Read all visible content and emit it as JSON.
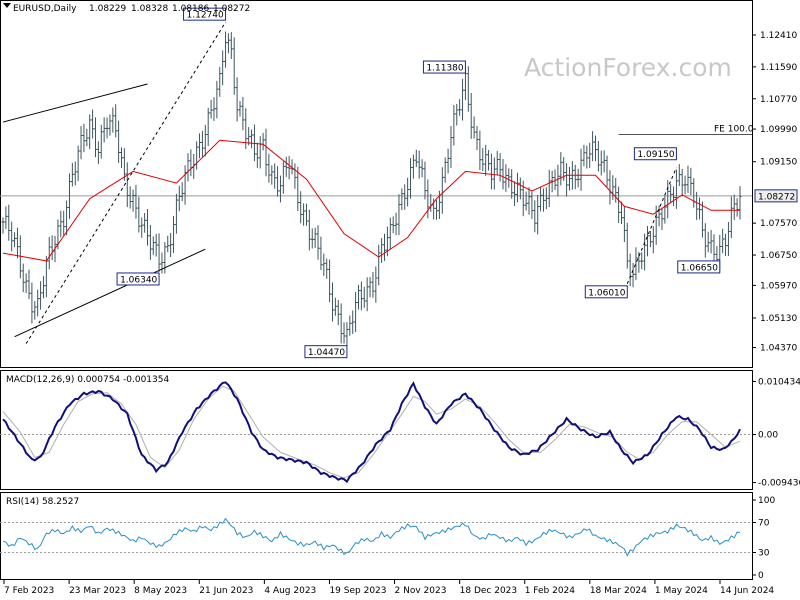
{
  "chart_data": {
    "type": "ohlc",
    "title": "EURUSD,Daily",
    "header_values": [
      "1.08229",
      "1.08328",
      "1.08186",
      "1.08272"
    ],
    "watermark": "ActionForex.com",
    "current_price": {
      "value": 1.08272,
      "label": "1.08272"
    },
    "price_axis": {
      "ylim": [
        1.0405,
        1.1295
      ],
      "ticks": [
        {
          "value": 1.1241,
          "label": "1.12410"
        },
        {
          "value": 1.1159,
          "label": "1.11590"
        },
        {
          "value": 1.1077,
          "label": "1.10770"
        },
        {
          "value": 1.0999,
          "label": "1.09990"
        },
        {
          "value": 1.0915,
          "label": "1.09150"
        },
        {
          "value": 1.0757,
          "label": "1.07570"
        },
        {
          "value": 1.0675,
          "label": "1.06750"
        },
        {
          "value": 1.0597,
          "label": "1.05970"
        },
        {
          "value": 1.0513,
          "label": "1.05130"
        },
        {
          "value": 1.0437,
          "label": "1.04370"
        }
      ]
    },
    "x_axis": {
      "labels": [
        "7 Feb 2023",
        "23 Mar 2023",
        "8 May 2023",
        "21 Jun 2023",
        "4 Aug 2023",
        "19 Sep 2023",
        "2 Nov 2023",
        "18 Dec 2023",
        "1 Feb 2024",
        "18 Mar 2024",
        "1 May 2024",
        "14 Jun 2024"
      ]
    },
    "close_path": [
      [
        0,
        1.076
      ],
      [
        3,
        1.072
      ],
      [
        6,
        1.065
      ],
      [
        8,
        1.06
      ],
      [
        10,
        1.056
      ],
      [
        12,
        1.054
      ],
      [
        15,
        1.064
      ],
      [
        18,
        1.072
      ],
      [
        21,
        1.078
      ],
      [
        24,
        1.088
      ],
      [
        27,
        1.095
      ],
      [
        30,
        1.101
      ],
      [
        33,
        1.096
      ],
      [
        36,
        1.102
      ],
      [
        39,
        1.099
      ],
      [
        42,
        1.087
      ],
      [
        45,
        1.082
      ],
      [
        48,
        1.075
      ],
      [
        51,
        1.07
      ],
      [
        54,
        1.067
      ],
      [
        57,
        1.07
      ],
      [
        60,
        1.079
      ],
      [
        63,
        1.087
      ],
      [
        66,
        1.093
      ],
      [
        69,
        1.098
      ],
      [
        72,
        1.104
      ],
      [
        75,
        1.111
      ],
      [
        77,
        1.124
      ],
      [
        79,
        1.12
      ],
      [
        81,
        1.107
      ],
      [
        84,
        1.099
      ],
      [
        87,
        1.093
      ],
      [
        90,
        1.096
      ],
      [
        93,
        1.088
      ],
      [
        96,
        1.085
      ],
      [
        99,
        1.091
      ],
      [
        102,
        1.083
      ],
      [
        105,
        1.076
      ],
      [
        108,
        1.07
      ],
      [
        111,
        1.064
      ],
      [
        114,
        1.056
      ],
      [
        117,
        1.05
      ],
      [
        119,
        1.046
      ],
      [
        122,
        1.054
      ],
      [
        125,
        1.058
      ],
      [
        128,
        1.061
      ],
      [
        131,
        1.069
      ],
      [
        134,
        1.072
      ],
      [
        137,
        1.08
      ],
      [
        140,
        1.087
      ],
      [
        143,
        1.093
      ],
      [
        146,
        1.083
      ],
      [
        149,
        1.078
      ],
      [
        152,
        1.087
      ],
      [
        155,
        1.098
      ],
      [
        158,
        1.106
      ],
      [
        160,
        1.112
      ],
      [
        163,
        1.099
      ],
      [
        166,
        1.092
      ],
      [
        169,
        1.088
      ],
      [
        172,
        1.09
      ],
      [
        175,
        1.087
      ],
      [
        178,
        1.084
      ],
      [
        181,
        1.08
      ],
      [
        184,
        1.078
      ],
      [
        187,
        1.084
      ],
      [
        190,
        1.086
      ],
      [
        193,
        1.088
      ],
      [
        196,
        1.087
      ],
      [
        199,
        1.09
      ],
      [
        202,
        1.094
      ],
      [
        205,
        1.093
      ],
      [
        208,
        1.09
      ],
      [
        211,
        1.085
      ],
      [
        214,
        1.078
      ],
      [
        216,
        1.064
      ],
      [
        218,
        1.062
      ],
      [
        221,
        1.069
      ],
      [
        224,
        1.073
      ],
      [
        227,
        1.076
      ],
      [
        230,
        1.081
      ],
      [
        233,
        1.087
      ],
      [
        236,
        1.088
      ],
      [
        239,
        1.082
      ],
      [
        242,
        1.073
      ],
      [
        245,
        1.07
      ],
      [
        248,
        1.069
      ],
      [
        250,
        1.071
      ],
      [
        253,
        1.079
      ],
      [
        255,
        1.0827
      ]
    ],
    "moving_average": [
      [
        0,
        1.068
      ],
      [
        15,
        1.066
      ],
      [
        30,
        1.082
      ],
      [
        45,
        1.089
      ],
      [
        60,
        1.086
      ],
      [
        75,
        1.097
      ],
      [
        90,
        1.096
      ],
      [
        105,
        1.087
      ],
      [
        118,
        1.073
      ],
      [
        130,
        1.067
      ],
      [
        140,
        1.072
      ],
      [
        150,
        1.082
      ],
      [
        160,
        1.089
      ],
      [
        172,
        1.088
      ],
      [
        183,
        1.084
      ],
      [
        195,
        1.088
      ],
      [
        205,
        1.088
      ],
      [
        215,
        1.08
      ],
      [
        225,
        1.078
      ],
      [
        235,
        1.083
      ],
      [
        245,
        1.079
      ],
      [
        255,
        1.079
      ]
    ],
    "annotations": [
      {
        "label": "1.12740",
        "x": 77,
        "y": 1.1274
      },
      {
        "label": "1.11380",
        "x": 160,
        "y": 1.1138
      },
      {
        "label": "1.09150",
        "x": 233,
        "y": 1.0915
      },
      {
        "label": "1.08272",
        "x": 255,
        "y": 1.08272
      },
      {
        "label": "1.06340",
        "x": 54,
        "y": 1.0634
      },
      {
        "label": "1.06010",
        "x": 216,
        "y": 1.0601
      },
      {
        "label": "1.06650",
        "x": 248,
        "y": 1.0665
      },
      {
        "label": "1.04470",
        "x": 119,
        "y": 1.0447
      }
    ],
    "fe_line": {
      "label": "FE 100.0",
      "value": 1.0985,
      "x_start": 213
    },
    "trendlines": [
      {
        "x1": 0,
        "y1": 1.1017,
        "x2": 50,
        "y2": 1.1115
      },
      {
        "x1": 4,
        "y1": 1.0465,
        "x2": 70,
        "y2": 1.069
      },
      {
        "x1": 8,
        "y1": 1.0447,
        "x2": 77,
        "y2": 1.1274
      },
      {
        "x1": 216,
        "y1": 1.0601,
        "x2": 233,
        "y2": 1.09
      }
    ],
    "macd": {
      "label": "MACD(12,26,9) 0.000754 -0.001354",
      "ylim": [
        -0.0105,
        0.0115
      ],
      "ticks": [
        {
          "value": 0.010434,
          "label": "0.010434"
        },
        {
          "value": 0.0,
          "label": "0.00"
        },
        {
          "value": -0.009436,
          "label": "-0.009436"
        }
      ],
      "macd_path": [
        [
          0,
          0.003
        ],
        [
          5,
          -0.001
        ],
        [
          10,
          -0.005
        ],
        [
          13,
          -0.0045
        ],
        [
          18,
          0.0015
        ],
        [
          23,
          0.006
        ],
        [
          28,
          0.008
        ],
        [
          33,
          0.0085
        ],
        [
          38,
          0.007
        ],
        [
          43,
          0.004
        ],
        [
          48,
          -0.004
        ],
        [
          53,
          -0.007
        ],
        [
          57,
          -0.0055
        ],
        [
          62,
          0.0005
        ],
        [
          67,
          0.005
        ],
        [
          72,
          0.008
        ],
        [
          77,
          0.0105
        ],
        [
          81,
          0.007
        ],
        [
          86,
          0.0005
        ],
        [
          90,
          -0.003
        ],
        [
          95,
          -0.0045
        ],
        [
          100,
          -0.005
        ],
        [
          105,
          -0.0055
        ],
        [
          110,
          -0.0075
        ],
        [
          115,
          -0.0085
        ],
        [
          119,
          -0.009
        ],
        [
          124,
          -0.006
        ],
        [
          129,
          -0.002
        ],
        [
          134,
          0.001
        ],
        [
          138,
          0.006
        ],
        [
          142,
          0.01
        ],
        [
          146,
          0.0055
        ],
        [
          150,
          0.002
        ],
        [
          155,
          0.006
        ],
        [
          160,
          0.008
        ],
        [
          165,
          0.005
        ],
        [
          170,
          0.001
        ],
        [
          175,
          -0.0025
        ],
        [
          180,
          -0.004
        ],
        [
          185,
          -0.003
        ],
        [
          190,
          0.0
        ],
        [
          195,
          0.003
        ],
        [
          200,
          0.001
        ],
        [
          205,
          -0.0005
        ],
        [
          210,
          0.0005
        ],
        [
          214,
          -0.003
        ],
        [
          218,
          -0.0055
        ],
        [
          223,
          -0.004
        ],
        [
          228,
          0.0
        ],
        [
          233,
          0.0035
        ],
        [
          237,
          0.003
        ],
        [
          241,
          0.001
        ],
        [
          245,
          -0.0025
        ],
        [
          249,
          -0.003
        ],
        [
          252,
          -0.0015
        ],
        [
          255,
          0.0008
        ]
      ],
      "signal_path": [
        [
          0,
          0.0045
        ],
        [
          6,
          0.0005
        ],
        [
          11,
          -0.0045
        ],
        [
          16,
          -0.0035
        ],
        [
          21,
          0.002
        ],
        [
          26,
          0.0065
        ],
        [
          31,
          0.008
        ],
        [
          36,
          0.0082
        ],
        [
          41,
          0.006
        ],
        [
          46,
          0.002
        ],
        [
          51,
          -0.0045
        ],
        [
          56,
          -0.0065
        ],
        [
          61,
          -0.003
        ],
        [
          66,
          0.003
        ],
        [
          71,
          0.007
        ],
        [
          76,
          0.0095
        ],
        [
          80,
          0.0085
        ],
        [
          85,
          0.004
        ],
        [
          90,
          -0.0005
        ],
        [
          96,
          -0.0035
        ],
        [
          102,
          -0.0048
        ],
        [
          108,
          -0.006
        ],
        [
          113,
          -0.0075
        ],
        [
          118,
          -0.0085
        ],
        [
          123,
          -0.0075
        ],
        [
          128,
          -0.004
        ],
        [
          133,
          0.0
        ],
        [
          138,
          0.004
        ],
        [
          142,
          0.0075
        ],
        [
          146,
          0.0065
        ],
        [
          150,
          0.004
        ],
        [
          155,
          0.005
        ],
        [
          160,
          0.007
        ],
        [
          165,
          0.0055
        ],
        [
          170,
          0.0025
        ],
        [
          175,
          -0.001
        ],
        [
          180,
          -0.0035
        ],
        [
          186,
          -0.0035
        ],
        [
          191,
          -0.001
        ],
        [
          196,
          0.002
        ],
        [
          201,
          0.0015
        ],
        [
          206,
          0.0003
        ],
        [
          211,
          -0.0005
        ],
        [
          216,
          -0.0035
        ],
        [
          220,
          -0.0048
        ],
        [
          225,
          -0.0035
        ],
        [
          230,
          0.0
        ],
        [
          235,
          0.0025
        ],
        [
          240,
          0.0025
        ],
        [
          245,
          0.0
        ],
        [
          250,
          -0.0025
        ],
        [
          255,
          -0.0013
        ]
      ]
    },
    "rsi": {
      "label": "RSI(14) 58.2527",
      "ylim": [
        0,
        100
      ],
      "ticks": [
        {
          "value": 100,
          "label": "100"
        },
        {
          "value": 70,
          "label": "70"
        },
        {
          "value": 30,
          "label": "30"
        },
        {
          "value": 0,
          "label": "0"
        }
      ],
      "levels": [
        70,
        30
      ],
      "path": [
        [
          0,
          45
        ],
        [
          3,
          38
        ],
        [
          6,
          50
        ],
        [
          9,
          42
        ],
        [
          12,
          34
        ],
        [
          15,
          55
        ],
        [
          18,
          60
        ],
        [
          21,
          55
        ],
        [
          24,
          63
        ],
        [
          27,
          58
        ],
        [
          30,
          66
        ],
        [
          33,
          55
        ],
        [
          36,
          62
        ],
        [
          39,
          58
        ],
        [
          42,
          52
        ],
        [
          45,
          45
        ],
        [
          48,
          50
        ],
        [
          51,
          42
        ],
        [
          54,
          38
        ],
        [
          57,
          45
        ],
        [
          60,
          56
        ],
        [
          63,
          62
        ],
        [
          66,
          58
        ],
        [
          69,
          65
        ],
        [
          72,
          60
        ],
        [
          75,
          68
        ],
        [
          77,
          74
        ],
        [
          79,
          66
        ],
        [
          81,
          56
        ],
        [
          84,
          50
        ],
        [
          87,
          58
        ],
        [
          90,
          52
        ],
        [
          93,
          45
        ],
        [
          96,
          55
        ],
        [
          99,
          48
        ],
        [
          102,
          42
        ],
        [
          105,
          40
        ],
        [
          108,
          44
        ],
        [
          111,
          36
        ],
        [
          114,
          40
        ],
        [
          117,
          32
        ],
        [
          119,
          28
        ],
        [
          122,
          42
        ],
        [
          125,
          48
        ],
        [
          128,
          45
        ],
        [
          131,
          55
        ],
        [
          134,
          50
        ],
        [
          137,
          60
        ],
        [
          140,
          66
        ],
        [
          143,
          64
        ],
        [
          146,
          50
        ],
        [
          149,
          55
        ],
        [
          152,
          58
        ],
        [
          155,
          62
        ],
        [
          158,
          66
        ],
        [
          160,
          68
        ],
        [
          163,
          52
        ],
        [
          166,
          48
        ],
        [
          169,
          55
        ],
        [
          172,
          50
        ],
        [
          175,
          45
        ],
        [
          178,
          50
        ],
        [
          181,
          42
        ],
        [
          184,
          46
        ],
        [
          187,
          55
        ],
        [
          190,
          60
        ],
        [
          193,
          56
        ],
        [
          196,
          50
        ],
        [
          199,
          55
        ],
        [
          202,
          62
        ],
        [
          205,
          52
        ],
        [
          208,
          48
        ],
        [
          211,
          44
        ],
        [
          214,
          38
        ],
        [
          216,
          28
        ],
        [
          218,
          34
        ],
        [
          221,
          46
        ],
        [
          224,
          52
        ],
        [
          227,
          56
        ],
        [
          230,
          58
        ],
        [
          233,
          66
        ],
        [
          236,
          62
        ],
        [
          239,
          55
        ],
        [
          242,
          46
        ],
        [
          245,
          50
        ],
        [
          248,
          42
        ],
        [
          250,
          45
        ],
        [
          253,
          52
        ],
        [
          255,
          58
        ]
      ]
    }
  }
}
